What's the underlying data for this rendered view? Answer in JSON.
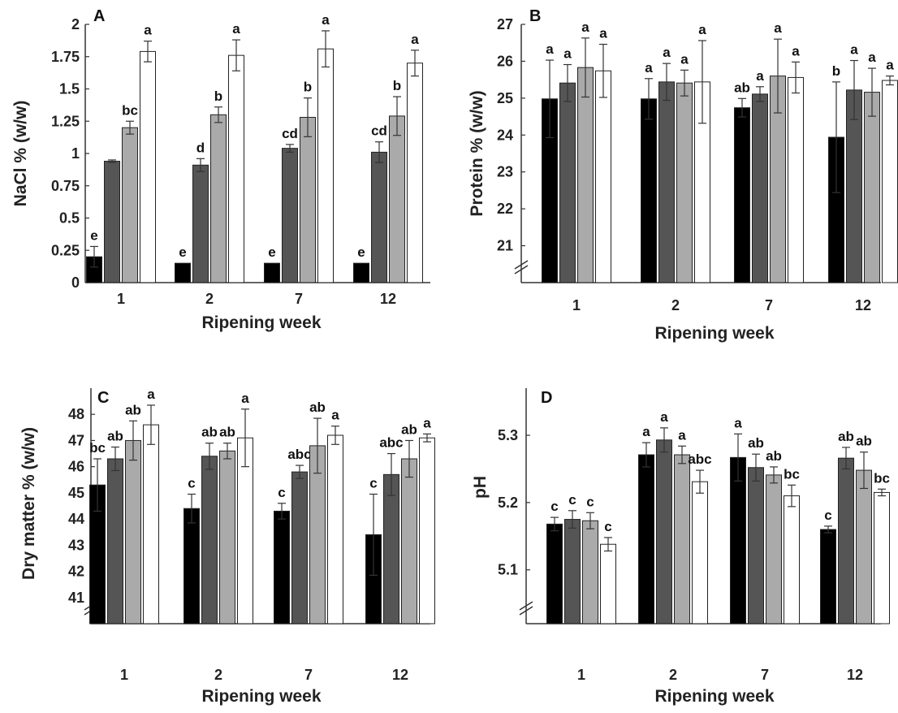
{
  "chart_data": [
    {
      "panel": "A",
      "type": "bar",
      "xlabel": "Ripening week",
      "ylabel": "NaCl % (w/w)",
      "categories": [
        "1",
        "2",
        "7",
        "12"
      ],
      "ylim": [
        0,
        2
      ],
      "yticks": [
        "0",
        "0.25",
        "0.5",
        "0.75",
        "1",
        "1.25",
        "1.5",
        "1.75",
        "2"
      ],
      "ytick_values": [
        0,
        0.25,
        0.5,
        0.75,
        1,
        1.25,
        1.5,
        1.75,
        2
      ],
      "axis_break": false,
      "series_colors": [
        "#000000",
        "#555555",
        "#aaaaaa",
        "#ffffff"
      ],
      "series": [
        {
          "values": [
            0.2,
            0.15,
            0.15,
            0.15
          ],
          "errors": [
            0.08,
            0.0,
            0.0,
            0.0
          ],
          "labels": [
            "e",
            "e",
            "e",
            "e"
          ]
        },
        {
          "values": [
            0.94,
            0.91,
            1.04,
            1.01
          ],
          "errors": [
            0.01,
            0.05,
            0.03,
            0.08
          ],
          "labels": [
            "",
            "d",
            "cd",
            "cd"
          ]
        },
        {
          "values": [
            1.2,
            1.3,
            1.28,
            1.29
          ],
          "errors": [
            0.05,
            0.06,
            0.15,
            0.15
          ],
          "labels": [
            "bc",
            "b",
            "b",
            "b"
          ]
        },
        {
          "values": [
            1.79,
            1.76,
            1.81,
            1.7
          ],
          "errors": [
            0.08,
            0.12,
            0.14,
            0.1
          ],
          "labels": [
            "a",
            "a",
            "a",
            "a"
          ]
        }
      ]
    },
    {
      "panel": "B",
      "type": "bar",
      "xlabel": "Ripening week",
      "ylabel": "Protein % (w/w)",
      "categories": [
        "1",
        "2",
        "7",
        "12"
      ],
      "ylim": [
        20,
        27
      ],
      "yticks": [
        "21",
        "22",
        "23",
        "24",
        "25",
        "26",
        "27"
      ],
      "ytick_values": [
        21,
        22,
        23,
        24,
        25,
        26,
        27
      ],
      "axis_break": true,
      "series_colors": [
        "#000000",
        "#555555",
        "#aaaaaa",
        "#ffffff"
      ],
      "series": [
        {
          "values": [
            24.98,
            24.98,
            24.74,
            23.94
          ],
          "errors": [
            1.05,
            0.55,
            0.25,
            1.5
          ],
          "labels": [
            "a",
            "a",
            "ab",
            "b"
          ]
        },
        {
          "values": [
            25.41,
            25.44,
            25.11,
            25.22
          ],
          "errors": [
            0.5,
            0.5,
            0.2,
            0.8
          ],
          "labels": [
            "a",
            "a",
            "a",
            "a"
          ]
        },
        {
          "values": [
            25.83,
            25.41,
            25.6,
            25.16
          ],
          "errors": [
            0.8,
            0.35,
            1.0,
            0.65
          ],
          "labels": [
            "a",
            "a",
            "a",
            "a"
          ]
        },
        {
          "values": [
            25.74,
            25.44,
            25.56,
            25.48
          ],
          "errors": [
            0.72,
            1.12,
            0.42,
            0.12
          ],
          "labels": [
            "a",
            "a",
            "a",
            "a"
          ]
        }
      ]
    },
    {
      "panel": "C",
      "type": "bar",
      "xlabel": "Ripening week",
      "ylabel": "Dry matter % (w/w)",
      "categories": [
        "1",
        "2",
        "7",
        "12"
      ],
      "ylim": [
        40,
        49
      ],
      "yticks": [
        "41",
        "42",
        "43",
        "44",
        "45",
        "46",
        "47",
        "48"
      ],
      "ytick_values": [
        41,
        42,
        43,
        44,
        45,
        46,
        47,
        48
      ],
      "axis_break": true,
      "series_colors": [
        "#000000",
        "#555555",
        "#aaaaaa",
        "#ffffff"
      ],
      "series": [
        {
          "values": [
            45.3,
            44.4,
            44.3,
            43.4
          ],
          "errors": [
            1.0,
            0.55,
            0.3,
            1.55
          ],
          "labels": [
            "bc",
            "c",
            "c",
            "c"
          ]
        },
        {
          "values": [
            46.3,
            46.4,
            45.8,
            45.7
          ],
          "errors": [
            0.45,
            0.5,
            0.25,
            0.8
          ],
          "labels": [
            "ab",
            "ab",
            "abc",
            "abc"
          ]
        },
        {
          "values": [
            47.0,
            46.6,
            46.8,
            46.3
          ],
          "errors": [
            0.75,
            0.3,
            1.05,
            0.7
          ],
          "labels": [
            "ab",
            "ab",
            "ab",
            "ab"
          ]
        },
        {
          "values": [
            47.6,
            47.1,
            47.2,
            47.1
          ],
          "errors": [
            0.75,
            1.1,
            0.35,
            0.15
          ],
          "labels": [
            "a",
            "a",
            "a",
            "a"
          ]
        }
      ]
    },
    {
      "panel": "D",
      "type": "bar",
      "xlabel": "Ripening week",
      "ylabel": "pH",
      "categories": [
        "1",
        "2",
        "7",
        "12"
      ],
      "ylim": [
        5.02,
        5.37
      ],
      "yticks": [
        "5.1",
        "5.2",
        "5.3"
      ],
      "ytick_values": [
        5.1,
        5.2,
        5.3
      ],
      "axis_break": true,
      "series_colors": [
        "#000000",
        "#555555",
        "#aaaaaa",
        "#ffffff"
      ],
      "series": [
        {
          "values": [
            5.168,
            5.271,
            5.267,
            5.16
          ],
          "errors": [
            0.01,
            0.018,
            0.035,
            0.005
          ],
          "labels": [
            "c",
            "a",
            "a",
            "c"
          ]
        },
        {
          "values": [
            5.175,
            5.293,
            5.252,
            5.266
          ],
          "errors": [
            0.013,
            0.018,
            0.02,
            0.016
          ],
          "labels": [
            "c",
            "a",
            "ab",
            "ab"
          ]
        },
        {
          "values": [
            5.173,
            5.271,
            5.241,
            5.248
          ],
          "errors": [
            0.012,
            0.013,
            0.012,
            0.027
          ],
          "labels": [
            "c",
            "a",
            "ab",
            "ab"
          ]
        },
        {
          "values": [
            5.138,
            5.231,
            5.21,
            5.215
          ],
          "errors": [
            0.01,
            0.017,
            0.016,
            0.005
          ],
          "labels": [
            "c",
            "abc",
            "bc",
            "bc"
          ]
        }
      ]
    }
  ]
}
